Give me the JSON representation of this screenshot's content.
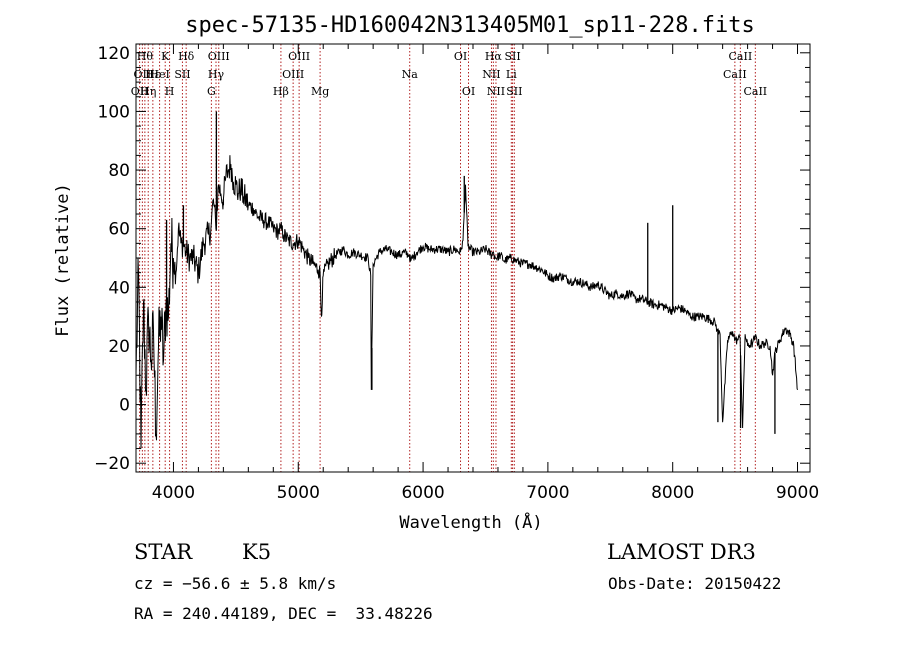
{
  "chart_data": {
    "type": "line",
    "title": "spec-57135-HD160042N313405M01_sp11-228.fits",
    "xlabel": "Wavelength (Å)",
    "ylabel": "Flux (relative)",
    "xlim": [
      3700,
      9100
    ],
    "ylim": [
      -23,
      123
    ],
    "xticks": [
      4000,
      5000,
      6000,
      7000,
      8000,
      9000
    ],
    "yticks": [
      -20,
      0,
      20,
      40,
      60,
      80,
      100,
      120
    ],
    "grid": false,
    "line_color": "#000000",
    "marker_color": "#b22222",
    "series": [
      {
        "x": [
          3700,
          3720,
          3740,
          3760,
          3780,
          3800,
          3820,
          3840,
          3860,
          3880,
          3900,
          3920,
          3940,
          3960,
          3980,
          4000,
          4020,
          4040,
          4060,
          4080,
          4100,
          4130,
          4160,
          4200,
          4240,
          4280,
          4300,
          4320,
          4340,
          4360,
          4380,
          4400,
          4420,
          4440,
          4460,
          4480,
          4500,
          4520,
          4540,
          4560,
          4580,
          4600,
          4640,
          4680,
          4720,
          4760,
          4800,
          4840,
          4860,
          4880,
          4920,
          4960,
          5000,
          5040,
          5080,
          5120,
          5160,
          5175,
          5185,
          5200,
          5240,
          5300,
          5360,
          5400,
          5440,
          5500,
          5560,
          5580,
          5585,
          5600,
          5650,
          5700,
          5750,
          5800,
          5850,
          5890,
          5900,
          5950,
          6000,
          6050,
          6100,
          6150,
          6200,
          6250,
          6300,
          6320,
          6340,
          6360,
          6400,
          6450,
          6500,
          6550,
          6560,
          6580,
          6620,
          6650,
          6700,
          6750,
          6800,
          6850,
          6900,
          6950,
          7000,
          7050,
          7100,
          7150,
          7200,
          7250,
          7300,
          7350,
          7400,
          7450,
          7500,
          7550,
          7600,
          7650,
          7700,
          7750,
          7800,
          7850,
          7900,
          7950,
          8000,
          8050,
          8100,
          8150,
          8200,
          8250,
          8300,
          8340,
          8360,
          8380,
          8400,
          8440,
          8480,
          8500,
          8520,
          8540,
          8560,
          8580,
          8600,
          8640,
          8660,
          8700,
          8740,
          8780,
          8800,
          8820,
          8860,
          8900,
          8940,
          8970,
          9000
        ],
        "y": [
          10,
          45,
          -15,
          35,
          5,
          30,
          15,
          25,
          -10,
          20,
          30,
          15,
          35,
          30,
          55,
          50,
          45,
          60,
          55,
          55,
          52,
          50,
          50,
          45,
          55,
          58,
          60,
          70,
          60,
          75,
          72,
          70,
          78,
          80,
          82,
          76,
          75,
          72,
          74,
          71,
          70,
          68,
          67,
          64,
          63,
          62,
          60,
          59,
          60,
          58,
          56,
          55,
          56,
          53,
          50,
          48,
          46,
          45,
          30,
          44,
          48,
          51,
          53,
          51,
          52,
          51,
          50,
          44,
          5,
          48,
          52,
          53,
          52,
          51,
          52,
          51,
          49,
          52,
          54,
          53,
          53,
          53,
          52,
          53,
          52,
          56,
          75,
          54,
          52,
          52,
          53,
          51,
          52,
          50,
          51,
          49,
          50,
          49,
          48,
          48,
          47,
          46,
          44,
          43,
          44,
          43,
          42,
          42,
          41,
          40,
          41,
          39,
          37,
          38,
          37,
          38,
          36,
          36,
          35,
          34,
          34,
          33,
          32,
          33,
          32,
          30,
          30,
          30,
          29,
          28,
          25,
          24,
          -6,
          22,
          25,
          22,
          22,
          23,
          -8,
          24,
          20,
          21,
          23,
          20,
          21,
          20,
          10,
          18,
          22,
          26,
          24,
          20,
          5
        ]
      }
    ],
    "spikes": [
      {
        "x": 3945,
        "y": 63
      },
      {
        "x": 4080,
        "y": 68
      },
      {
        "x": 4344,
        "y": 100
      },
      {
        "x": 4400,
        "y": 68
      },
      {
        "x": 5590,
        "y": 5
      },
      {
        "x": 6330,
        "y": 78
      },
      {
        "x": 7800,
        "y": 62
      },
      {
        "x": 8000,
        "y": 68
      },
      {
        "x": 8362,
        "y": -6
      },
      {
        "x": 8544,
        "y": -8
      },
      {
        "x": 8819,
        "y": -10
      }
    ],
    "line_markers": [
      {
        "x": 3729,
        "label": "OII",
        "row": 2
      },
      {
        "x": 3751,
        "label": "OII",
        "row": 1
      },
      {
        "x": 3771,
        "label": "Hθ",
        "row": 0
      },
      {
        "x": 3798,
        "label": "Hη",
        "row": 2
      },
      {
        "x": 3835,
        "label": "Hε",
        "row": 1
      },
      {
        "x": 3889,
        "label": "HeI",
        "row": 1
      },
      {
        "x": 3934,
        "label": "K",
        "row": 0
      },
      {
        "x": 3969,
        "label": "H",
        "row": 2
      },
      {
        "x": 4072,
        "label": "SII",
        "row": 1
      },
      {
        "x": 4102,
        "label": "Hδ",
        "row": 0
      },
      {
        "x": 4304,
        "label": "G",
        "row": 2
      },
      {
        "x": 4341,
        "label": "Hγ",
        "row": 1
      },
      {
        "x": 4363,
        "label": "OIII",
        "row": 0
      },
      {
        "x": 4861,
        "label": "Hβ",
        "row": 2
      },
      {
        "x": 4959,
        "label": "OIII",
        "row": 1
      },
      {
        "x": 5007,
        "label": "OIII",
        "row": 0
      },
      {
        "x": 5175,
        "label": "Mg",
        "row": 2
      },
      {
        "x": 5893,
        "label": "Na",
        "row": 1
      },
      {
        "x": 6300,
        "label": "OI",
        "row": 0
      },
      {
        "x": 6364,
        "label": "OI",
        "row": 2
      },
      {
        "x": 6548,
        "label": "NII",
        "row": 1
      },
      {
        "x": 6563,
        "label": "Hα",
        "row": 0
      },
      {
        "x": 6584,
        "label": "NII",
        "row": 2
      },
      {
        "x": 6707,
        "label": "Li",
        "row": 1
      },
      {
        "x": 6717,
        "label": "SII",
        "row": 0
      },
      {
        "x": 6731,
        "label": "SII",
        "row": 2
      },
      {
        "x": 8498,
        "label": "CaII",
        "row": 1
      },
      {
        "x": 8542,
        "label": "CaII",
        "row": 0
      },
      {
        "x": 8662,
        "label": "CaII",
        "row": 2
      }
    ]
  },
  "info": {
    "class_label": "STAR",
    "subclass": "K5",
    "survey": "LAMOST DR3",
    "redshift": "cz = −56.6 ± 5.8 km/s",
    "obs_date": "Obs-Date: 20150422",
    "coords": "RA = 240.44189, DEC =  33.48226"
  }
}
